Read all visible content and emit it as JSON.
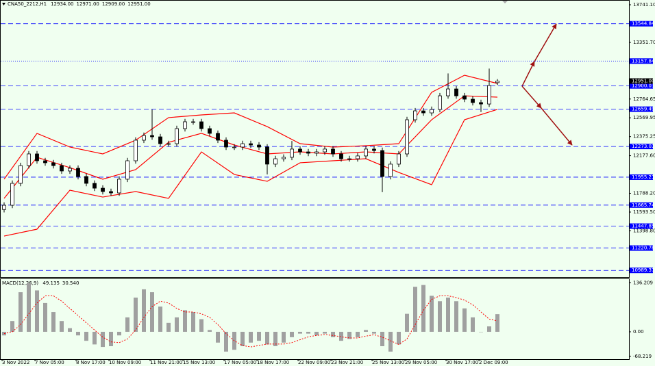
{
  "chart_data": [
    {
      "type": "candlestick",
      "title": "CNA50_2212,H1",
      "header": [
        {
          "value": 12934,
          "label": "12934.00"
        },
        {
          "value": 12971,
          "label": "12971.00"
        },
        {
          "value": 12909,
          "label": "12909.00"
        },
        {
          "value": 12951,
          "label": "12951.00"
        }
      ],
      "categories": [
        "3 Nov 2022",
        null,
        null,
        null,
        "7 Nov 05:00",
        null,
        null,
        null,
        null,
        "8 Nov 17:00",
        null,
        null,
        null,
        "10 Nov 09:00",
        null,
        null,
        null,
        null,
        "11 Nov 21:00",
        null,
        null,
        null,
        "15 Nov 13:00",
        null,
        null,
        null,
        null,
        "17 Nov 05:00",
        null,
        null,
        null,
        "18 Nov 17:00",
        null,
        null,
        null,
        null,
        "22 Nov 09:00",
        null,
        null,
        null,
        "23 Nov 21:00",
        null,
        null,
        null,
        null,
        "25 Nov 13:00",
        null,
        null,
        null,
        "29 Nov 05:00",
        null,
        null,
        null,
        null,
        "30 Nov 17:00",
        null,
        null,
        null,
        "2 Dec 09:00",
        null,
        null
      ],
      "open": [
        11620,
        11664,
        11891,
        12075,
        12196,
        12125,
        12104,
        12075,
        12019,
        12047,
        11962,
        11891,
        11841,
        11806,
        11792,
        11934,
        12125,
        12338,
        12387,
        12373,
        12302,
        12302,
        12458,
        12529,
        12529,
        12458,
        12409,
        12338,
        12267,
        12267,
        12302,
        12288,
        12267,
        12090,
        12146,
        12161,
        12246,
        12217,
        12203,
        12217,
        12246,
        12196,
        12146,
        12146,
        12175,
        12246,
        12231,
        11962,
        12090,
        12196,
        12550,
        12642,
        12621,
        12657,
        12798,
        12869,
        12798,
        12763,
        12728,
        12713,
        12934
      ],
      "high": [
        11694,
        11921,
        12105,
        12226,
        12226,
        12155,
        12134,
        12105,
        12077,
        12077,
        11992,
        11921,
        11871,
        11836,
        11964,
        12155,
        12368,
        12417,
        12657,
        12403,
        12332,
        12488,
        12559,
        12559,
        12559,
        12488,
        12439,
        12368,
        12297,
        12332,
        12332,
        12318,
        12297,
        12176,
        12191,
        12330,
        12276,
        12247,
        12247,
        12276,
        12276,
        12226,
        12176,
        12205,
        12276,
        12276,
        12261,
        12120,
        12226,
        12580,
        12672,
        12672,
        12687,
        12828,
        13030,
        12899,
        12828,
        12793,
        12758,
        13080,
        12971
      ],
      "low": [
        11590,
        11634,
        11861,
        12045,
        12095,
        12074,
        12045,
        11989,
        11989,
        11932,
        11861,
        11811,
        11776,
        11762,
        11762,
        11904,
        12095,
        12308,
        12343,
        12272,
        12272,
        12272,
        12428,
        12499,
        12428,
        12379,
        12308,
        12237,
        12237,
        12237,
        12258,
        12237,
        11983,
        12060,
        12116,
        12131,
        12187,
        12173,
        12173,
        12187,
        12166,
        12116,
        12116,
        12116,
        12145,
        12201,
        11800,
        11932,
        12060,
        12166,
        12520,
        12591,
        12591,
        12627,
        12768,
        12768,
        12733,
        12698,
        12630,
        12683,
        12909
      ],
      "close": [
        11664,
        11891,
        12075,
        12196,
        12125,
        12104,
        12075,
        12019,
        12047,
        11962,
        11891,
        11841,
        11806,
        11792,
        11934,
        12125,
        12338,
        12387,
        12373,
        12302,
        12302,
        12458,
        12529,
        12529,
        12458,
        12409,
        12338,
        12267,
        12267,
        12302,
        12288,
        12267,
        12090,
        12146,
        12161,
        12246,
        12217,
        12203,
        12217,
        12246,
        12196,
        12146,
        12146,
        12175,
        12246,
        12231,
        11962,
        12090,
        12196,
        12550,
        12642,
        12621,
        12657,
        12798,
        12869,
        12798,
        12763,
        12728,
        12713,
        12905,
        12951
      ],
      "bull_color": "#ffffff",
      "bear_color": "#000000",
      "candle_outline": "#000000",
      "bands": {
        "color": "#ff0000",
        "x": [
          0,
          4,
          8,
          12,
          16,
          20,
          24,
          28,
          32,
          36,
          40,
          44,
          48,
          52,
          56,
          60
        ],
        "upper": [
          11934,
          12409,
          12267,
          12196,
          12338,
          12572,
          12600,
          12621,
          12479,
          12302,
          12267,
          12281,
          12302,
          12834,
          13011,
          12926
        ],
        "middle": [
          11735,
          12161,
          12054,
          11934,
          12033,
          12316,
          12409,
          12288,
          12196,
          12217,
          12196,
          12217,
          12196,
          12550,
          12798,
          12784
        ],
        "lower": [
          11345,
          11416,
          11820,
          11749,
          11806,
          11735,
          12217,
          11983,
          11912,
          12104,
          12125,
          12146,
          12004,
          11877,
          12550,
          12657
        ]
      },
      "levels": [
        {
          "value": 13544.84,
          "label": "13544.84",
          "style": "dashed"
        },
        {
          "value": 13157.84,
          "label": "13157.84",
          "style": "dotted"
        },
        {
          "value": 12900.03,
          "label": "12900.03",
          "style": "dashed"
        },
        {
          "value": 12659.49,
          "label": "12659.49",
          "style": "dashed"
        },
        {
          "value": 12273.03,
          "label": "12273.03",
          "style": "dashed"
        },
        {
          "value": 11955.21,
          "label": "11955.21",
          "style": "dashed"
        },
        {
          "value": 11665.74,
          "label": "11665.74",
          "style": "dashed"
        },
        {
          "value": 11447.85,
          "label": "11447.85",
          "style": "dashed"
        },
        {
          "value": 11220.78,
          "label": "11220.78",
          "style": "dashed"
        },
        {
          "value": 10989.37,
          "label": "10989.37",
          "style": "dashed"
        }
      ],
      "level_color": "#0000ff",
      "price_marker": {
        "value": 12951,
        "label": "12951.00"
      },
      "ylim": [
        10920,
        13790.7
      ],
      "yticks": [
        {
          "value": 13741.1,
          "label": "13741.10"
        },
        {
          "value": 13351.7,
          "label": "13351.70"
        },
        {
          "value": 12764.65,
          "label": "12764.65"
        },
        {
          "value": 12569.95,
          "label": "12569.95"
        },
        {
          "value": 12375.25,
          "label": "12375.25"
        },
        {
          "value": 12177.6,
          "label": "12177.60"
        },
        {
          "value": 11788.2,
          "label": "11788.20"
        },
        {
          "value": 11593.5,
          "label": "11593.50"
        },
        {
          "value": 11398.8,
          "label": "11398.80"
        }
      ]
    },
    {
      "type": "bar",
      "title": "MACD(12,26,9)",
      "header": [
        {
          "value": 49.135,
          "label": "49.135"
        },
        {
          "value": 30.54,
          "label": "30.540"
        }
      ],
      "color": "#a0a0a0",
      "signal_color": "#ff0000",
      "values": [
        -10,
        30,
        110,
        135,
        115,
        80,
        55,
        30,
        10,
        -10,
        -25,
        -35,
        -42,
        -40,
        -10,
        40,
        95,
        118,
        110,
        70,
        25,
        40,
        60,
        55,
        35,
        5,
        -30,
        -55,
        -50,
        -40,
        -30,
        -25,
        -35,
        -40,
        -30,
        -15,
        -5,
        -5,
        -10,
        -5,
        -15,
        -25,
        -20,
        -15,
        5,
        -5,
        -40,
        -55,
        -35,
        50,
        125,
        130,
        100,
        85,
        95,
        85,
        65,
        40,
        0,
        15,
        49.135
      ],
      "signal": [
        -5,
        0,
        20,
        50,
        80,
        100,
        100,
        85,
        65,
        45,
        25,
        5,
        -15,
        -28,
        -30,
        -20,
        5,
        40,
        70,
        85,
        80,
        65,
        55,
        55,
        50,
        40,
        20,
        -5,
        -25,
        -38,
        -42,
        -38,
        -34,
        -34,
        -34,
        -30,
        -22,
        -14,
        -10,
        -8,
        -10,
        -14,
        -17,
        -17,
        -12,
        -8,
        -15,
        -25,
        -35,
        -20,
        20,
        60,
        90,
        100,
        100,
        95,
        88,
        75,
        55,
        35,
        30.54
      ],
      "ylim": [
        -81.7,
        146.3
      ],
      "yticks": [
        {
          "value": 136.209,
          "label": "136.209"
        },
        {
          "value": 0,
          "label": "0.00"
        },
        {
          "value": -68.219,
          "label": "-68.219"
        }
      ]
    }
  ]
}
